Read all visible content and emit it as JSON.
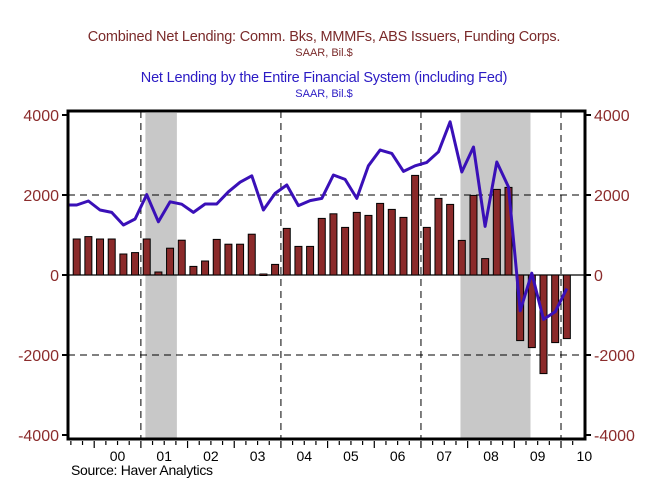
{
  "chart_data": {
    "type": "bar+line",
    "title": "Combined Net Lending: Comm. Bks, MMMFs, ABS Issuers, Funding Corps.",
    "title_units": "SAAR, Bil.$",
    "subtitle": "Net Lending by the Entire Financial System (including Fed)",
    "subtitle_units": "SAAR, Bil.$",
    "source": "Source: Haver Analytics",
    "xlabel": "",
    "ylabel_left": "",
    "ylabel_right": "",
    "ylim": [
      -4000,
      4000
    ],
    "yticks": [
      4000,
      2000,
      0,
      -2000,
      -4000
    ],
    "ytick_labels": [
      "4000",
      "2000",
      "0",
      "-2000",
      "-4000"
    ],
    "dashed_gridlines_y": [
      2000,
      -2000
    ],
    "x_year_labels": [
      "00",
      "01",
      "02",
      "03",
      "04",
      "05",
      "06",
      "07",
      "08",
      "09",
      "10"
    ],
    "first_quarter": "1999Q3",
    "dashed_vertical_year_boundaries": [
      "2001",
      "2004",
      "2007",
      "2010"
    ],
    "recessions": [
      {
        "start_quarter_index": 6.3,
        "end_quarter_index": 9.0,
        "label": "2001 recession"
      },
      {
        "start_quarter_index": 33.3,
        "end_quarter_index": 39.3,
        "label": "2007-09 recession"
      }
    ],
    "categories": [
      "1999Q3",
      "1999Q4",
      "2000Q1",
      "2000Q2",
      "2000Q3",
      "2000Q4",
      "2001Q1",
      "2001Q2",
      "2001Q3",
      "2001Q4",
      "2002Q1",
      "2002Q2",
      "2002Q3",
      "2002Q4",
      "2003Q1",
      "2003Q2",
      "2003Q3",
      "2003Q4",
      "2004Q1",
      "2004Q2",
      "2004Q3",
      "2004Q4",
      "2005Q1",
      "2005Q2",
      "2005Q3",
      "2005Q4",
      "2006Q1",
      "2006Q2",
      "2006Q3",
      "2006Q4",
      "2007Q1",
      "2007Q2",
      "2007Q3",
      "2007Q4",
      "2008Q1",
      "2008Q2",
      "2008Q3",
      "2008Q4",
      "2009Q1",
      "2009Q2",
      "2009Q3",
      "2009Q4",
      "2010Q1"
    ],
    "series": [
      {
        "name": "Combined Net Lending: Comm. Bks, MMMFs, ABS Issuers, Funding Corps.",
        "kind": "bar",
        "color": "#8b2a2a",
        "values": [
          900,
          960,
          900,
          900,
          525,
          560,
          900,
          75,
          670,
          870,
          215,
          350,
          890,
          770,
          770,
          1020,
          25,
          265,
          1165,
          715,
          715,
          1415,
          1530,
          1190,
          1565,
          1490,
          1790,
          1640,
          1440,
          2490,
          1190,
          1915,
          1765,
          865,
          1990,
          410,
          2140,
          2190,
          -1640,
          -1815,
          -2465,
          -1690,
          -1590
        ]
      },
      {
        "name": "Net Lending by the Entire Financial System (including Fed)",
        "kind": "line",
        "color": "#3a10b8",
        "values": [
          1750,
          1850,
          1625,
          1565,
          1250,
          1400,
          2010,
          1330,
          1830,
          1770,
          1565,
          1775,
          1775,
          2080,
          2320,
          2480,
          1625,
          2040,
          2250,
          1735,
          1860,
          1915,
          2500,
          2390,
          1915,
          2730,
          3125,
          3040,
          2590,
          2730,
          2815,
          3080,
          3830,
          2575,
          3200,
          1215,
          2825,
          2200,
          -895,
          45,
          -1110,
          -920,
          -340
        ]
      }
    ],
    "grid": "dashed at 2000/-2000 and selected year boundaries",
    "legend": "titles at top"
  }
}
